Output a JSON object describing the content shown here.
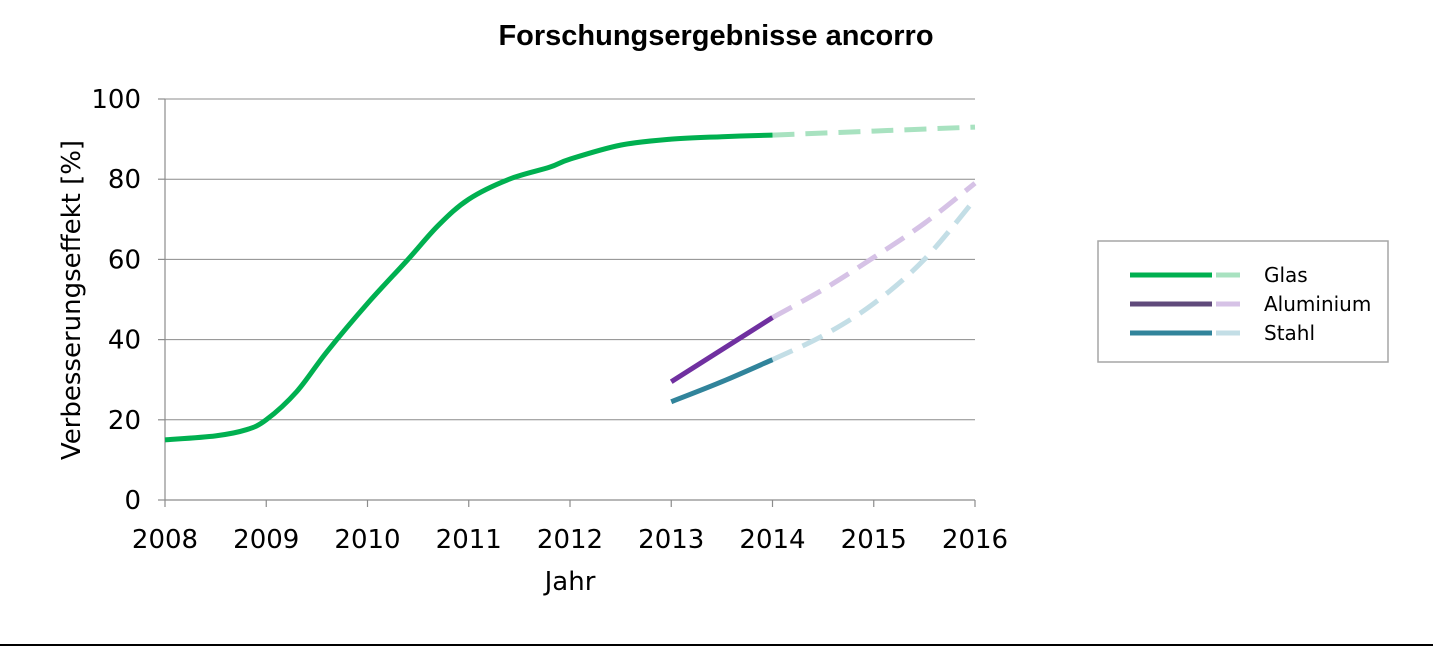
{
  "chart_data": {
    "type": "line",
    "title": "Forschungsergebnisse ancorro",
    "xlabel": "Jahr",
    "ylabel": "Verbesserungseffekt  [%]",
    "xlim": [
      2008,
      2016
    ],
    "ylim": [
      0,
      100
    ],
    "x_ticks": [
      "2008",
      "2009",
      "2010",
      "2011",
      "2012",
      "2013",
      "2014",
      "2015",
      "2016"
    ],
    "y_ticks": [
      "0",
      "20",
      "40",
      "60",
      "80",
      "100"
    ],
    "grid": true,
    "legend_position": "right",
    "series": [
      {
        "name": "Glas",
        "color": "#00b050",
        "projection_color": "#a8e2c0",
        "measured": [
          [
            2008,
            15
          ],
          [
            2008.5,
            16
          ],
          [
            2008.8,
            17.5
          ],
          [
            2009,
            20
          ],
          [
            2009.3,
            27
          ],
          [
            2009.6,
            37
          ],
          [
            2010,
            49
          ],
          [
            2010.4,
            60
          ],
          [
            2010.7,
            68.5
          ],
          [
            2011,
            75
          ],
          [
            2011.4,
            80
          ],
          [
            2011.8,
            83
          ],
          [
            2012,
            85
          ],
          [
            2012.5,
            88.5
          ],
          [
            2013,
            90
          ],
          [
            2013.5,
            90.6
          ],
          [
            2014,
            91
          ]
        ],
        "projected": [
          [
            2014,
            91
          ],
          [
            2015,
            92
          ],
          [
            2016,
            93
          ]
        ]
      },
      {
        "name": "Aluminium",
        "color": "#7030a0",
        "projection_color": "#d6c2e6",
        "measured": [
          [
            2013,
            29.5
          ],
          [
            2013.5,
            37.5
          ],
          [
            2014,
            45.5
          ]
        ],
        "projected": [
          [
            2014,
            45.5
          ],
          [
            2014.5,
            52.5
          ],
          [
            2015,
            60.5
          ],
          [
            2015.5,
            69
          ],
          [
            2016,
            79
          ]
        ]
      },
      {
        "name": "Stahl",
        "color": "#31849b",
        "projection_color": "#c3dee6",
        "measured": [
          [
            2013,
            24.5
          ],
          [
            2013.5,
            29.5
          ],
          [
            2014,
            35
          ]
        ],
        "projected": [
          [
            2014,
            35
          ],
          [
            2014.5,
            41
          ],
          [
            2015,
            49
          ],
          [
            2015.5,
            60
          ],
          [
            2016,
            75
          ]
        ]
      }
    ]
  }
}
